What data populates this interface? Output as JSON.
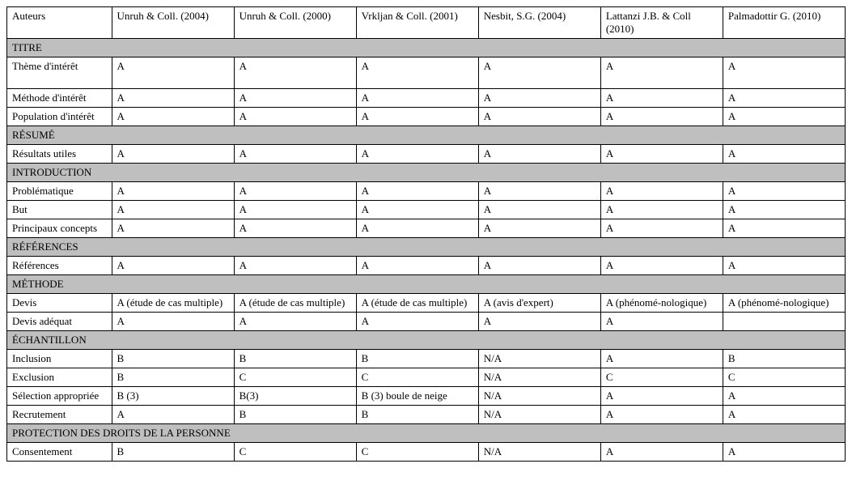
{
  "header": {
    "label": "Auteurs",
    "cols": [
      "Unruh & Coll. (2004)",
      "Unruh & Coll. (2000)",
      "Vrkljan & Coll. (2001)",
      "Nesbit, S.G. (2004)",
      "Lattanzi J.B. & Coll (2010)",
      "Palmadottir G. (2010)"
    ]
  },
  "sections": [
    {
      "title": "TITRE",
      "rows": [
        {
          "label": "Thème d'intérêt",
          "cells": [
            "A",
            "A",
            "A",
            "A",
            "A",
            "A"
          ],
          "tall": true
        },
        {
          "label": "Méthode d'intérêt",
          "cells": [
            "A",
            "A",
            "A",
            "A",
            "A",
            "A"
          ]
        },
        {
          "label": "Population d'intérêt",
          "cells": [
            "A",
            "A",
            "A",
            "A",
            "A",
            "A"
          ]
        }
      ]
    },
    {
      "title": "RÉSUMÉ",
      "rows": [
        {
          "label": "Résultats utiles",
          "cells": [
            "A",
            "A",
            "A",
            "A",
            "A",
            "A"
          ]
        }
      ]
    },
    {
      "title": "INTRODUCTION",
      "rows": [
        {
          "label": "Problématique",
          "cells": [
            "A",
            "A",
            "A",
            "A",
            "A",
            "A"
          ]
        },
        {
          "label": "But",
          "cells": [
            "A",
            "A",
            "A",
            "A",
            "A",
            "A"
          ]
        },
        {
          "label": "Principaux concepts",
          "cells": [
            "A",
            "A",
            "A",
            "A",
            "A",
            "A"
          ]
        }
      ]
    },
    {
      "title": "RÉFÉRENCES",
      "rows": [
        {
          "label": "Références",
          "cells": [
            "A",
            "A",
            "A",
            "A",
            "A",
            "A"
          ]
        }
      ]
    },
    {
      "title": "MÉTHODE",
      "rows": [
        {
          "label": "Devis",
          "cells": [
            "A (étude de cas multiple)",
            "A (étude de cas multiple)",
            "A (étude de cas multiple)",
            "A (avis d'expert)",
            "A (phénomé-nologique)",
            "A (phénomé-nologique)"
          ]
        },
        {
          "label": "Devis adéquat",
          "cells": [
            "A",
            "A",
            "A",
            "A",
            "A",
            ""
          ]
        }
      ]
    },
    {
      "title": "ÉCHANTILLON",
      "rows": [
        {
          "label": "Inclusion",
          "cells": [
            "B",
            "B",
            "B",
            "N/A",
            "A",
            "B"
          ]
        },
        {
          "label": "Exclusion",
          "cells": [
            "B",
            "C",
            "C",
            "N/A",
            "C",
            "C"
          ]
        },
        {
          "label": "Sélection appropriée",
          "cells": [
            "B (3)",
            "B(3)",
            "B (3) boule de neige",
            "N/A",
            "A",
            "A"
          ]
        },
        {
          "label": "Recrutement",
          "cells": [
            "A",
            "B",
            "B",
            "N/A",
            "A",
            "A"
          ]
        }
      ]
    },
    {
      "title": "PROTECTION DES DROITS DE LA PERSONNE",
      "rows": [
        {
          "label": "Consentement",
          "cells": [
            "B",
            "C",
            "C",
            "N/A",
            "A",
            "A"
          ]
        }
      ]
    }
  ],
  "style": {
    "section_bg": "#bfbfbf",
    "border_color": "#000000",
    "font_family": "Times New Roman",
    "font_size_pt": 10
  }
}
